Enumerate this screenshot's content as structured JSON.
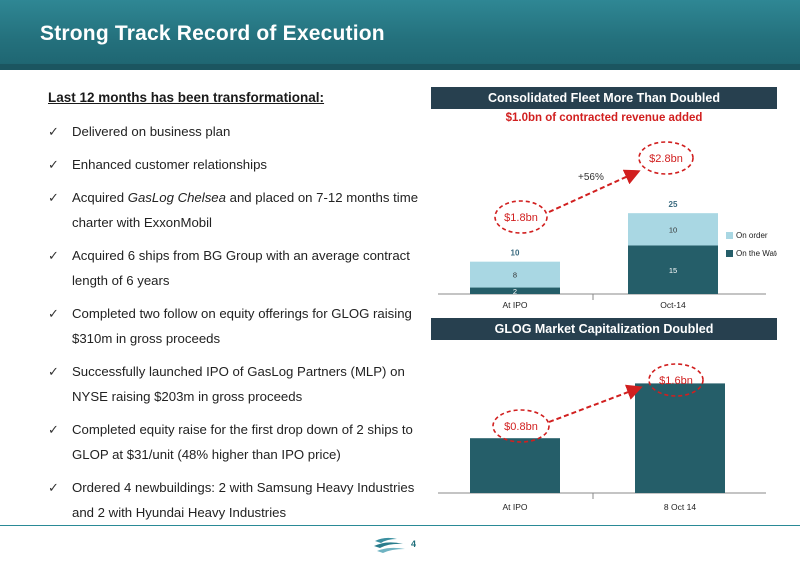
{
  "header": {
    "title": "Strong Track Record of Execution"
  },
  "left": {
    "intro": "Last 12 months has been transformational:",
    "bullets": [
      {
        "text": "Delivered on business plan"
      },
      {
        "text": "Enhanced customer relationships"
      },
      {
        "pre": "Acquired ",
        "em": "GasLog Chelsea",
        "post": " and placed on 7-12 months time charter with ExxonMobil"
      },
      {
        "text": "Acquired 6 ships from BG Group with an average contract length of 6 years"
      },
      {
        "text": "Completed two follow on equity offerings for GLOG raising $310m in gross proceeds"
      },
      {
        "text": "Successfully launched IPO of GasLog Partners (MLP) on NYSE raising $203m in gross proceeds"
      },
      {
        "text": "Completed equity raise for the first drop down of 2 ships to GLOP at $31/unit (48% higher than IPO price)"
      },
      {
        "text": "Ordered 4 newbuildings: 2 with Samsung Heavy Industries and 2 with Hyundai Heavy Industries"
      }
    ]
  },
  "fleet": {
    "title": "Consolidated Fleet More Than Doubled",
    "subtitle": "$1.0bn of contracted revenue added",
    "callout_left": "$1.8bn",
    "callout_right": "$2.8bn",
    "growth_label": "+56%"
  },
  "market": {
    "title": "GLOG Market Capitalization Doubled",
    "callout_left": "$0.8bn",
    "callout_right": "$1.6bn"
  },
  "chart_data": [
    {
      "type": "bar",
      "stacked": true,
      "categories": [
        "At IPO",
        "Oct-14"
      ],
      "series": [
        {
          "name": "On the Water",
          "values": [
            2,
            15
          ],
          "color": "#255e69"
        },
        {
          "name": "On order",
          "values": [
            8,
            10
          ],
          "color": "#a9d7e3"
        }
      ],
      "totals": [
        10,
        25
      ],
      "legend": "right",
      "ylim": [
        0,
        30
      ],
      "grid": false
    },
    {
      "type": "bar",
      "categories": [
        "At IPO",
        "8 Oct 14"
      ],
      "values": [
        0.8,
        1.6
      ],
      "color": "#255e69",
      "ylim": [
        0,
        2.0
      ],
      "grid": false
    }
  ],
  "footer": {
    "page": "4"
  }
}
